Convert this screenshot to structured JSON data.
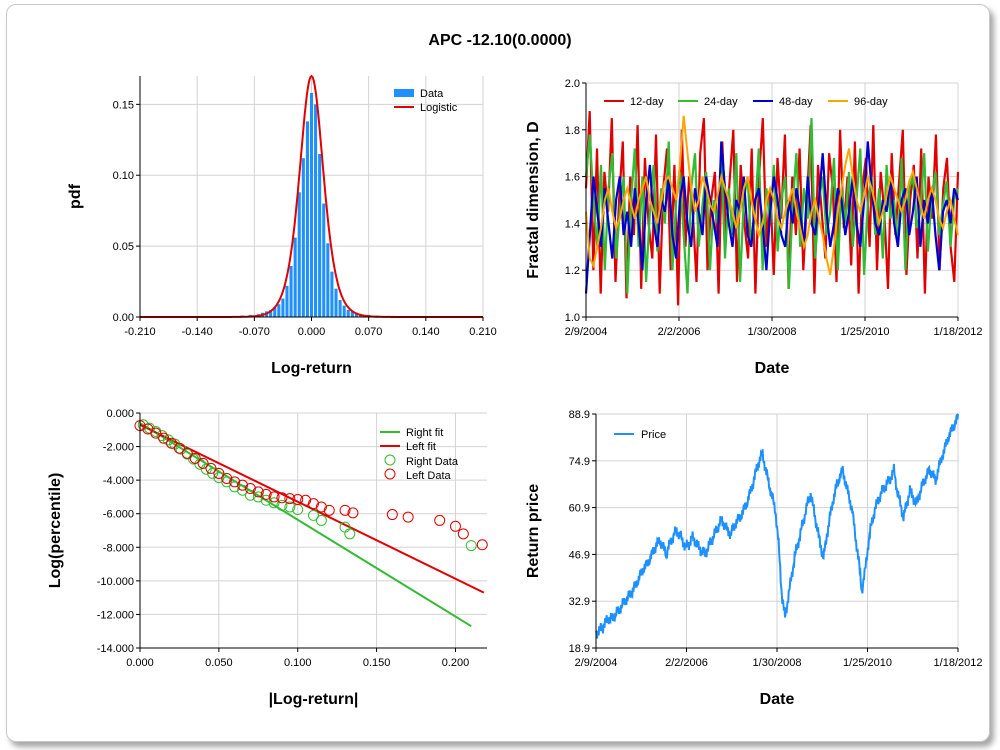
{
  "title": "APC -12.10(0.0000)",
  "colors": {
    "bar": "#1E90FF",
    "logistic": "#E00000",
    "d12": "#E00000",
    "d24": "#33BB33",
    "d48": "#0000CC",
    "d96": "#FFA500",
    "rightfit": "#33BB33",
    "leftfit": "#E00000",
    "price": "#1E90FF",
    "grid": "#D3D3D3"
  },
  "chart_data": [
    {
      "id": "pdf",
      "type": "bar",
      "xlabel": "Log-return",
      "ylabel": "pdf",
      "xlim": [
        -0.21,
        0.21
      ],
      "ylim": [
        0,
        0.17
      ],
      "xticks": [
        "-0.210",
        "-0.140",
        "-0.070",
        "0.000",
        "0.070",
        "0.140",
        "0.210"
      ],
      "yticks": [
        "0.00",
        "0.05",
        "0.10",
        "0.15"
      ],
      "legend": [
        "Data",
        "Logistic"
      ],
      "bins": [
        [
          -0.12,
          0.0003
        ],
        [
          -0.095,
          0.0005
        ],
        [
          -0.085,
          0.001
        ],
        [
          -0.075,
          0.0015
        ],
        [
          -0.065,
          0.002
        ],
        [
          -0.06,
          0.003
        ],
        [
          -0.055,
          0.004
        ],
        [
          -0.05,
          0.005
        ],
        [
          -0.045,
          0.007
        ],
        [
          -0.04,
          0.009
        ],
        [
          -0.035,
          0.013
        ],
        [
          -0.03,
          0.022
        ],
        [
          -0.025,
          0.036
        ],
        [
          -0.02,
          0.056
        ],
        [
          -0.015,
          0.088
        ],
        [
          -0.01,
          0.112
        ],
        [
          -0.005,
          0.138
        ],
        [
          0.0,
          0.158
        ],
        [
          0.005,
          0.15
        ],
        [
          0.01,
          0.115
        ],
        [
          0.015,
          0.08
        ],
        [
          0.02,
          0.052
        ],
        [
          0.025,
          0.032
        ],
        [
          0.03,
          0.02
        ],
        [
          0.035,
          0.012
        ],
        [
          0.04,
          0.008
        ],
        [
          0.045,
          0.005
        ],
        [
          0.05,
          0.004
        ],
        [
          0.055,
          0.003
        ],
        [
          0.06,
          0.002
        ],
        [
          0.07,
          0.0015
        ],
        [
          0.08,
          0.001
        ],
        [
          0.1,
          0.0008
        ],
        [
          0.12,
          0.0004
        ],
        [
          0.14,
          0.0003
        ]
      ],
      "logistic": {
        "mu": 0.0,
        "s": 0.0098
      }
    },
    {
      "id": "fractal",
      "type": "line",
      "xlabel": "Date",
      "ylabel": "Fractal dimension, D",
      "ylim": [
        1.0,
        2.0
      ],
      "xticks": [
        "2/9/2004",
        "2/2/2006",
        "1/30/2008",
        "1/25/2010",
        "1/18/2012"
      ],
      "yticks": [
        "1.0",
        "1.2",
        "1.4",
        "1.6",
        "1.8",
        "2.0"
      ],
      "series": [
        {
          "name": "12-day",
          "values": [
            1.55,
            1.88,
            1.2,
            1.72,
            1.1,
            1.62,
            1.45,
            1.85,
            1.15,
            1.5,
            1.75,
            1.08,
            1.6,
            1.35,
            1.82,
            1.12,
            1.68,
            1.4,
            1.25,
            1.78,
            1.1,
            1.55,
            1.72,
            1.2,
            1.65,
            1.05,
            1.8,
            1.3,
            1.6,
            1.45,
            1.15,
            1.7,
            1.85,
            1.2,
            1.5,
            1.62,
            1.1,
            1.75,
            1.35,
            1.58,
            1.8,
            1.15,
            1.65,
            1.4,
            1.25,
            1.72,
            1.1,
            1.6,
            1.85,
            1.3,
            1.55,
            1.18,
            1.68,
            1.42,
            1.78,
            1.12,
            1.6,
            1.35,
            1.72,
            1.2,
            1.5,
            1.82,
            1.1,
            1.65,
            1.45,
            1.25,
            1.7,
            1.55,
            1.15,
            1.8,
            1.38,
            1.6,
            1.22,
            1.75,
            1.1,
            1.55,
            1.68,
            1.3,
            1.82,
            1.2,
            1.62,
            1.45,
            1.12,
            1.7,
            1.35,
            1.58,
            1.8,
            1.18,
            1.5,
            1.65,
            1.25,
            1.72,
            1.1,
            1.6,
            1.42,
            1.78,
            1.2,
            1.55,
            1.68,
            1.3,
            1.15,
            1.62
          ]
        },
        {
          "name": "24-day",
          "values": [
            1.6,
            1.78,
            1.5,
            1.3,
            1.65,
            1.2,
            1.55,
            1.7,
            1.25,
            1.45,
            1.6,
            1.1,
            1.5,
            1.72,
            1.3,
            1.6,
            1.15,
            1.45,
            1.65,
            1.28,
            1.55,
            1.4,
            1.75,
            1.2,
            1.5,
            1.62,
            1.35,
            1.1,
            1.55,
            1.7,
            1.3,
            1.48,
            1.62,
            1.2,
            1.5,
            1.4,
            1.68,
            1.25,
            1.55,
            1.35,
            1.7,
            1.15,
            1.5,
            1.6,
            1.3,
            1.45,
            1.72,
            1.2,
            1.55,
            1.4,
            1.65,
            1.28,
            1.5,
            1.6,
            1.12,
            1.48,
            1.7,
            1.3,
            1.55,
            1.42,
            1.85,
            1.25,
            1.5,
            1.6,
            1.35,
            1.45,
            1.68,
            1.2,
            1.55,
            1.4,
            1.62,
            1.3,
            1.5,
            1.72,
            1.18,
            1.48,
            1.6,
            1.35,
            1.55,
            1.25,
            1.65,
            1.42,
            1.5,
            1.3,
            1.68,
            1.2,
            1.55,
            1.6,
            1.38,
            1.45,
            1.7,
            1.28,
            1.52,
            1.62,
            1.35,
            1.48,
            1.58,
            1.3,
            1.5,
            1.55
          ]
        },
        {
          "name": "48-day",
          "values": [
            1.1,
            1.35,
            1.6,
            1.45,
            1.3,
            1.55,
            1.4,
            1.25,
            1.5,
            1.6,
            1.35,
            1.45,
            1.3,
            1.55,
            1.4,
            1.2,
            1.5,
            1.65,
            1.4,
            1.3,
            1.5,
            1.45,
            1.6,
            1.35,
            1.25,
            1.5,
            1.6,
            1.4,
            1.3,
            1.55,
            1.45,
            1.35,
            1.6,
            1.5,
            1.4,
            1.3,
            1.75,
            1.55,
            1.4,
            1.3,
            1.5,
            1.45,
            1.6,
            1.35,
            1.3,
            1.5,
            1.55,
            1.4,
            1.2,
            1.45,
            1.6,
            1.5,
            1.35,
            1.3,
            1.5,
            1.4,
            1.55,
            1.45,
            1.3,
            1.6,
            1.4,
            1.35,
            1.5,
            1.7,
            1.45,
            1.3,
            1.4,
            1.55,
            1.5,
            1.35,
            1.45,
            1.6,
            1.4,
            1.3,
            1.5,
            1.75,
            1.55,
            1.4,
            1.35,
            1.5,
            1.45,
            1.6,
            1.4,
            1.3,
            1.5,
            1.55,
            1.35,
            1.45,
            1.6,
            1.3,
            1.5,
            1.4,
            1.55,
            1.35,
            1.2,
            1.45,
            1.5,
            1.4,
            1.55,
            1.5
          ]
        },
        {
          "name": "96-day",
          "values": [
            1.45,
            1.25,
            1.22,
            1.3,
            1.38,
            1.5,
            1.55,
            1.45,
            1.38,
            1.42,
            1.5,
            1.55,
            1.48,
            1.42,
            1.5,
            1.55,
            1.6,
            1.5,
            1.45,
            1.4,
            1.5,
            1.58,
            1.6,
            1.55,
            1.5,
            1.65,
            1.86,
            1.7,
            1.55,
            1.45,
            1.5,
            1.6,
            1.55,
            1.48,
            1.45,
            1.52,
            1.6,
            1.55,
            1.5,
            1.45,
            1.38,
            1.45,
            1.55,
            1.6,
            1.5,
            1.42,
            1.35,
            1.4,
            1.5,
            1.55,
            1.5,
            1.42,
            1.38,
            1.45,
            1.5,
            1.55,
            1.45,
            1.38,
            1.3,
            1.35,
            1.45,
            1.5,
            1.42,
            1.35,
            1.25,
            1.18,
            1.3,
            1.45,
            1.55,
            1.65,
            1.72,
            1.6,
            1.5,
            1.45,
            1.52,
            1.6,
            1.55,
            1.48,
            1.4,
            1.45,
            1.52,
            1.6,
            1.55,
            1.5,
            1.45,
            1.5,
            1.58,
            1.62,
            1.55,
            1.48,
            1.42,
            1.5,
            1.55,
            1.5,
            1.42,
            1.38,
            1.45,
            1.5,
            1.42,
            1.35
          ]
        }
      ]
    },
    {
      "id": "tail",
      "type": "scatter",
      "xlabel": "|Log-return|",
      "ylabel": "Log(percentile)",
      "xlim": [
        0.0,
        0.22
      ],
      "ylim": [
        -14.0,
        0.0
      ],
      "xticks": [
        "0.000",
        "0.050",
        "0.100",
        "0.150",
        "0.200"
      ],
      "yticks": [
        "0.000",
        "-2.000",
        "-4.000",
        "-6.000",
        "-8.000",
        "-10.000",
        "-12.000",
        "-14.000"
      ],
      "legend": [
        "Right fit",
        "Left fit",
        "Right Data",
        "Left Data"
      ],
      "right_fit": [
        [
          0.0,
          -0.6
        ],
        [
          0.21,
          -12.7
        ]
      ],
      "left_fit": [
        [
          0.0,
          -0.7
        ],
        [
          0.218,
          -10.7
        ]
      ],
      "right_data": [
        [
          0.002,
          -0.7
        ],
        [
          0.006,
          -0.9
        ],
        [
          0.01,
          -1.1
        ],
        [
          0.014,
          -1.35
        ],
        [
          0.018,
          -1.6
        ],
        [
          0.022,
          -1.85
        ],
        [
          0.026,
          -2.15
        ],
        [
          0.03,
          -2.45
        ],
        [
          0.034,
          -2.75
        ],
        [
          0.038,
          -3.05
        ],
        [
          0.042,
          -3.35
        ],
        [
          0.046,
          -3.6
        ],
        [
          0.05,
          -3.85
        ],
        [
          0.055,
          -4.1
        ],
        [
          0.06,
          -4.4
        ],
        [
          0.065,
          -4.6
        ],
        [
          0.07,
          -4.9
        ],
        [
          0.075,
          -5.0
        ],
        [
          0.08,
          -5.2
        ],
        [
          0.085,
          -5.35
        ],
        [
          0.09,
          -5.5
        ],
        [
          0.095,
          -5.6
        ],
        [
          0.1,
          -5.75
        ],
        [
          0.11,
          -6.1
        ],
        [
          0.115,
          -6.4
        ],
        [
          0.13,
          -6.8
        ],
        [
          0.133,
          -7.2
        ],
        [
          0.21,
          -7.9
        ]
      ],
      "left_data": [
        [
          0.0,
          -0.75
        ],
        [
          0.005,
          -0.95
        ],
        [
          0.01,
          -1.2
        ],
        [
          0.015,
          -1.5
        ],
        [
          0.02,
          -1.8
        ],
        [
          0.025,
          -2.1
        ],
        [
          0.03,
          -2.4
        ],
        [
          0.035,
          -2.7
        ],
        [
          0.04,
          -3.0
        ],
        [
          0.045,
          -3.3
        ],
        [
          0.05,
          -3.6
        ],
        [
          0.055,
          -3.9
        ],
        [
          0.06,
          -4.1
        ],
        [
          0.065,
          -4.3
        ],
        [
          0.07,
          -4.5
        ],
        [
          0.075,
          -4.7
        ],
        [
          0.08,
          -4.85
        ],
        [
          0.085,
          -5.0
        ],
        [
          0.09,
          -5.05
        ],
        [
          0.095,
          -5.1
        ],
        [
          0.1,
          -5.15
        ],
        [
          0.105,
          -5.2
        ],
        [
          0.11,
          -5.4
        ],
        [
          0.115,
          -5.6
        ],
        [
          0.12,
          -5.8
        ],
        [
          0.13,
          -5.8
        ],
        [
          0.135,
          -5.95
        ],
        [
          0.16,
          -6.05
        ],
        [
          0.17,
          -6.2
        ],
        [
          0.19,
          -6.4
        ],
        [
          0.2,
          -6.75
        ],
        [
          0.205,
          -7.2
        ],
        [
          0.217,
          -7.85
        ]
      ]
    },
    {
      "id": "price",
      "type": "line",
      "xlabel": "Date",
      "ylabel": "Return price",
      "ylim": [
        18.9,
        88.9
      ],
      "xticks": [
        "2/9/2004",
        "2/2/2006",
        "1/30/2008",
        "1/25/2010",
        "1/18/2012"
      ],
      "yticks": [
        "18.9",
        "32.9",
        "46.9",
        "60.9",
        "74.9",
        "88.9"
      ],
      "legend": [
        "Price"
      ],
      "series": [
        {
          "name": "Price",
          "values": [
            23.5,
            24,
            25,
            26.5,
            28,
            27.5,
            29,
            30,
            31.5,
            33,
            34,
            35.5,
            37,
            39,
            41,
            43,
            44,
            46,
            48,
            50,
            51,
            49,
            47,
            50,
            52,
            54,
            53,
            51,
            49,
            50,
            52,
            51,
            49,
            48,
            47,
            49,
            51,
            53,
            55,
            57,
            56,
            54,
            53,
            55,
            57,
            58,
            60,
            62,
            65,
            68,
            72,
            75,
            77,
            72,
            68,
            64,
            60,
            50,
            35,
            28,
            34,
            40,
            46,
            50,
            54,
            58,
            62,
            65,
            60,
            55,
            50,
            46,
            52,
            58,
            63,
            67,
            70,
            72,
            68,
            64,
            60,
            52,
            45,
            36,
            42,
            50,
            56,
            60,
            63,
            65,
            67,
            68,
            70,
            72,
            66,
            62,
            58,
            62,
            66,
            64,
            62,
            65,
            68,
            70,
            72,
            71,
            69,
            73,
            76,
            79,
            82,
            84,
            86,
            88
          ]
        }
      ]
    }
  ]
}
